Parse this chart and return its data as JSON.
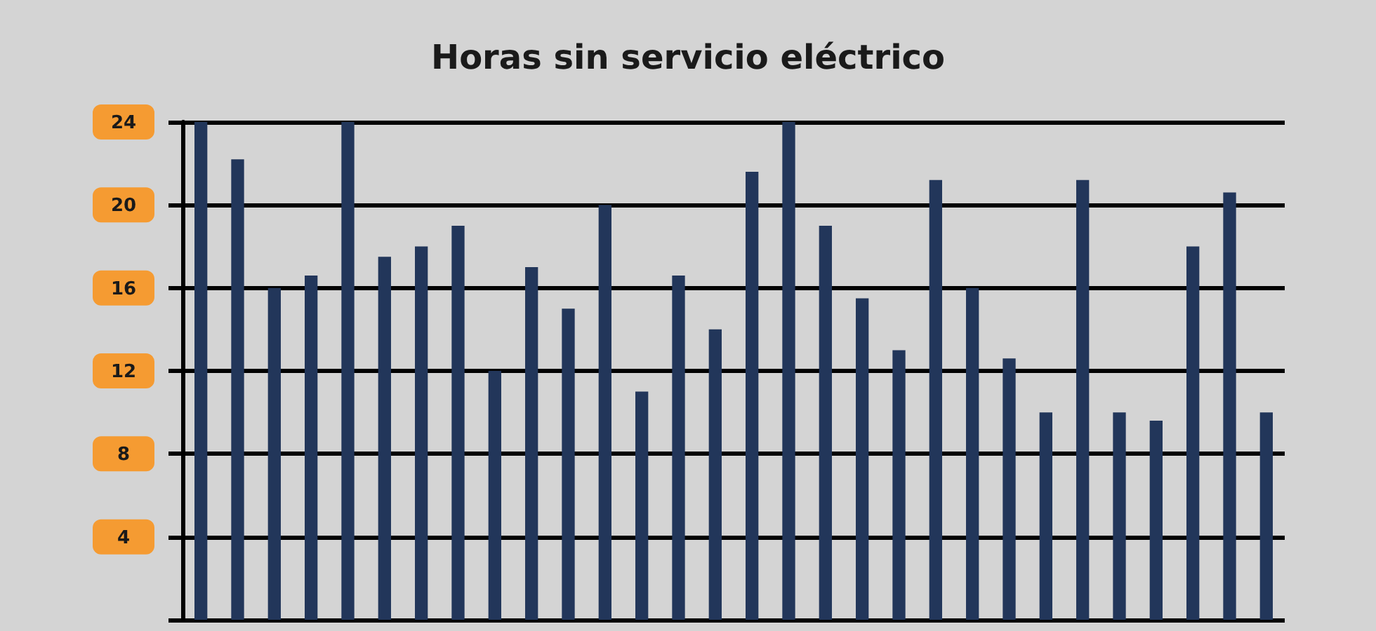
{
  "chart_data": {
    "type": "bar",
    "title": "Horas sin servicio eléctrico",
    "categories": [
      null,
      null,
      null,
      null,
      null,
      null,
      null,
      null,
      null,
      null,
      null,
      null,
      null,
      null,
      null,
      null,
      null,
      null,
      null,
      null,
      null,
      null,
      null,
      null,
      null,
      null,
      null,
      null,
      null,
      null
    ],
    "values": [
      24,
      22.2,
      16,
      16.6,
      24,
      17.5,
      18,
      19,
      12,
      17,
      15,
      20,
      11,
      16.6,
      14,
      21.6,
      24,
      19,
      15.5,
      13,
      21.2,
      16,
      12.6,
      10,
      21.2,
      10,
      9.6,
      18,
      20.6,
      10
    ],
    "color": "#22365a",
    "ylim": [
      0,
      24
    ],
    "yticks": [
      {
        "value": 0,
        "label": null
      },
      4,
      8,
      12,
      16,
      20,
      24
    ],
    "grid": "y"
  }
}
